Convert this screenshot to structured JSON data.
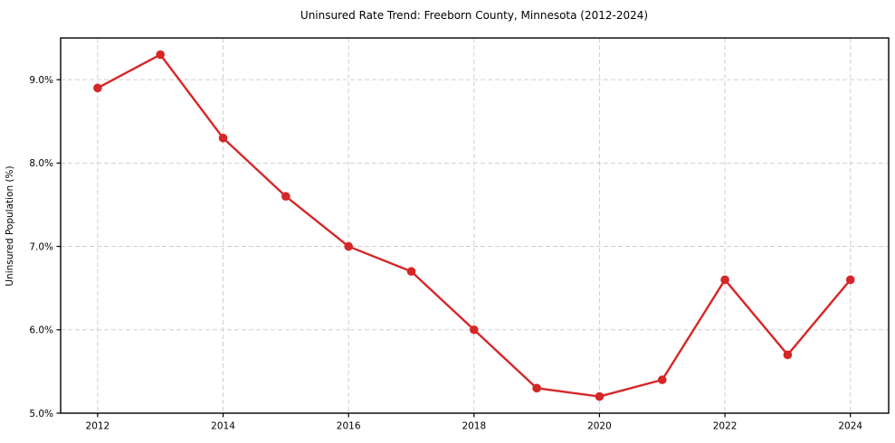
{
  "chart_data": {
    "type": "line",
    "title": "Uninsured Rate Trend: Freeborn County, Minnesota (2012-2024)",
    "xlabel": "",
    "ylabel": "Uninsured Population (%)",
    "x": [
      2012,
      2013,
      2014,
      2015,
      2016,
      2017,
      2018,
      2019,
      2020,
      2021,
      2022,
      2023,
      2024
    ],
    "values": [
      8.9,
      9.3,
      8.3,
      7.6,
      7.0,
      6.7,
      6.0,
      5.3,
      5.2,
      5.4,
      6.6,
      5.7,
      6.6
    ],
    "xlim": [
      2011.41,
      2024.61
    ],
    "ylim": [
      5.0,
      9.5
    ],
    "xticks": [
      2012,
      2014,
      2016,
      2018,
      2020,
      2022,
      2024
    ],
    "xtick_labels": [
      "2012",
      "2014",
      "2016",
      "2018",
      "2020",
      "2022",
      "2024"
    ],
    "yticks": [
      5.0,
      6.0,
      7.0,
      8.0,
      9.0
    ],
    "ytick_labels": [
      "5.0%",
      "6.0%",
      "7.0%",
      "8.0%",
      "9.0%"
    ],
    "grid": true,
    "grid_style": "dashed",
    "legend": "none",
    "line_color": "#d62728",
    "marker": "circle",
    "grid_color": "#cfcfcf",
    "frame_color": "#000000",
    "background_color": "#ffffff"
  }
}
